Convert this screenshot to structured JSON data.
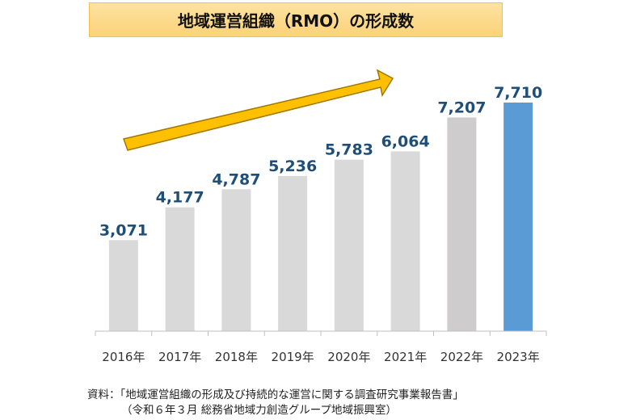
{
  "chart_data": {
    "type": "bar",
    "title": "地域運営組織（RMO）の形成数",
    "categories": [
      "2016年",
      "2017年",
      "2018年",
      "2019年",
      "2020年",
      "2021年",
      "2022年",
      "2023年"
    ],
    "values": [
      3071,
      4177,
      4787,
      5236,
      5783,
      6064,
      7207,
      7710
    ],
    "value_labels": [
      "3,071",
      "4,177",
      "4,787",
      "5,236",
      "5,783",
      "6,064",
      "7,207",
      "7,710"
    ],
    "bar_colors": [
      "#d9d9d9",
      "#d9d9d9",
      "#d9d9d9",
      "#d9d9d9",
      "#d9d9d9",
      "#d9d9d9",
      "#cecccd",
      "#5b9bd5"
    ],
    "label_color": "#1f4e79",
    "ylim": [
      0,
      8000
    ],
    "grid": false,
    "annotation": "upward-trend-arrow",
    "arrow_color": "#ffc000"
  },
  "source": {
    "line1": "資料：「地域運営組織の形成及び持続的な運営に関する調査研究事業報告書」",
    "line2": "（令和６年３月 総務省地域力創造グループ地域振興室）"
  }
}
